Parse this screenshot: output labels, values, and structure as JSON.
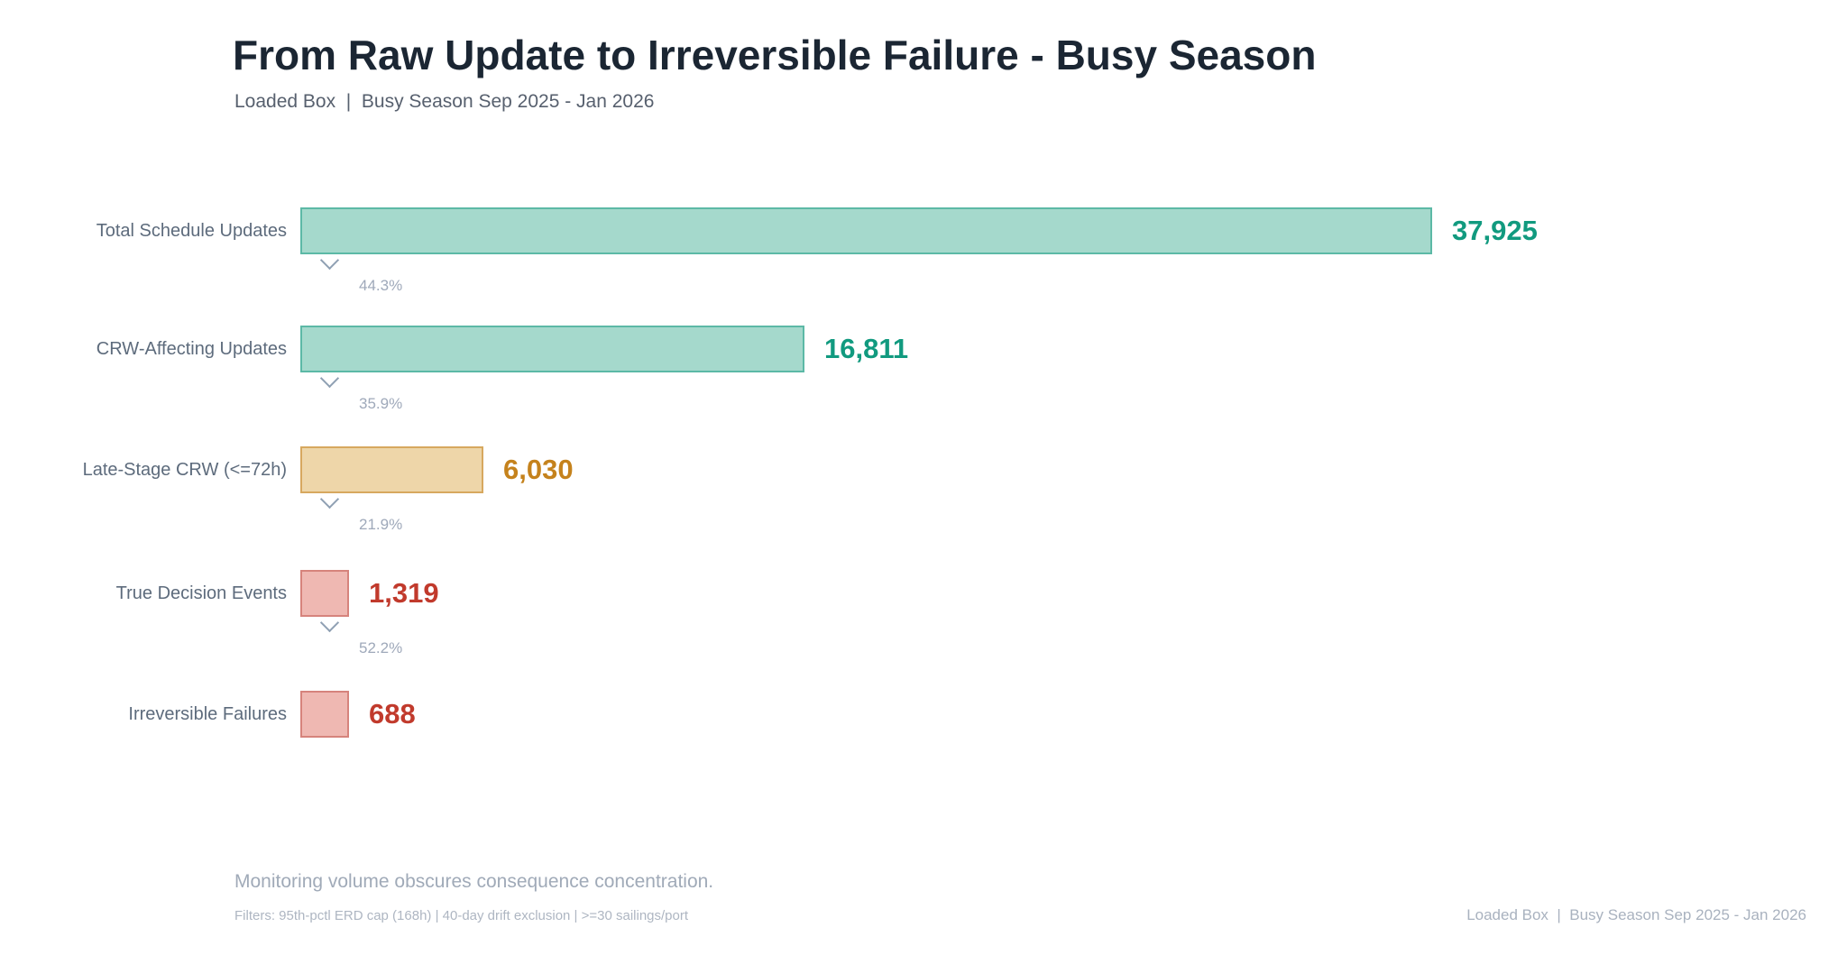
{
  "header": {
    "title": "From Raw Update to Irreversible Failure - Busy Season",
    "subtitle": "Loaded Box  |  Busy Season Sep 2025 - Jan 2026"
  },
  "chart_data": {
    "type": "bar",
    "variant": "horizontal-funnel",
    "title": "From Raw Update to Irreversible Failure - Busy Season",
    "subtitle": "Loaded Box  |  Busy Season Sep 2025 - Jan 2026",
    "grid": false,
    "legend": false,
    "stages": [
      {
        "label": "Total Schedule Updates",
        "value": 37925,
        "display_value": "37,925",
        "color_family": "teal",
        "conversion_to_next": "44.3%"
      },
      {
        "label": "CRW-Affecting Updates",
        "value": 16811,
        "display_value": "16,811",
        "color_family": "teal",
        "conversion_to_next": "35.9%"
      },
      {
        "label": "Late-Stage CRW (<=72h)",
        "value": 6030,
        "display_value": "6,030",
        "color_family": "amber",
        "conversion_to_next": "21.9%"
      },
      {
        "label": "True Decision Events",
        "value": 1319,
        "display_value": "1,319",
        "color_family": "red",
        "conversion_to_next": "52.2%"
      },
      {
        "label": "Irreversible Failures",
        "value": 688,
        "display_value": "688",
        "color_family": "red",
        "conversion_to_next": null
      }
    ],
    "colors": {
      "teal": {
        "fill": "#a5d9cc",
        "border": "#5cb9a6",
        "text": "#119a7f"
      },
      "amber": {
        "fill": "#eed6a9",
        "border": "#d7a85f",
        "text": "#c5821c"
      },
      "red": {
        "fill": "#efb8b2",
        "border": "#d6837c",
        "text": "#c13a2c"
      }
    }
  },
  "footer": {
    "note": "Monitoring volume obscures consequence concentration.",
    "filters": "Filters: 95th-pctl ERD cap (168h) | 40-day drift exclusion | >=30 sailings/port",
    "source": "Loaded Box  |  Busy Season Sep 2025 - Jan 2026"
  }
}
